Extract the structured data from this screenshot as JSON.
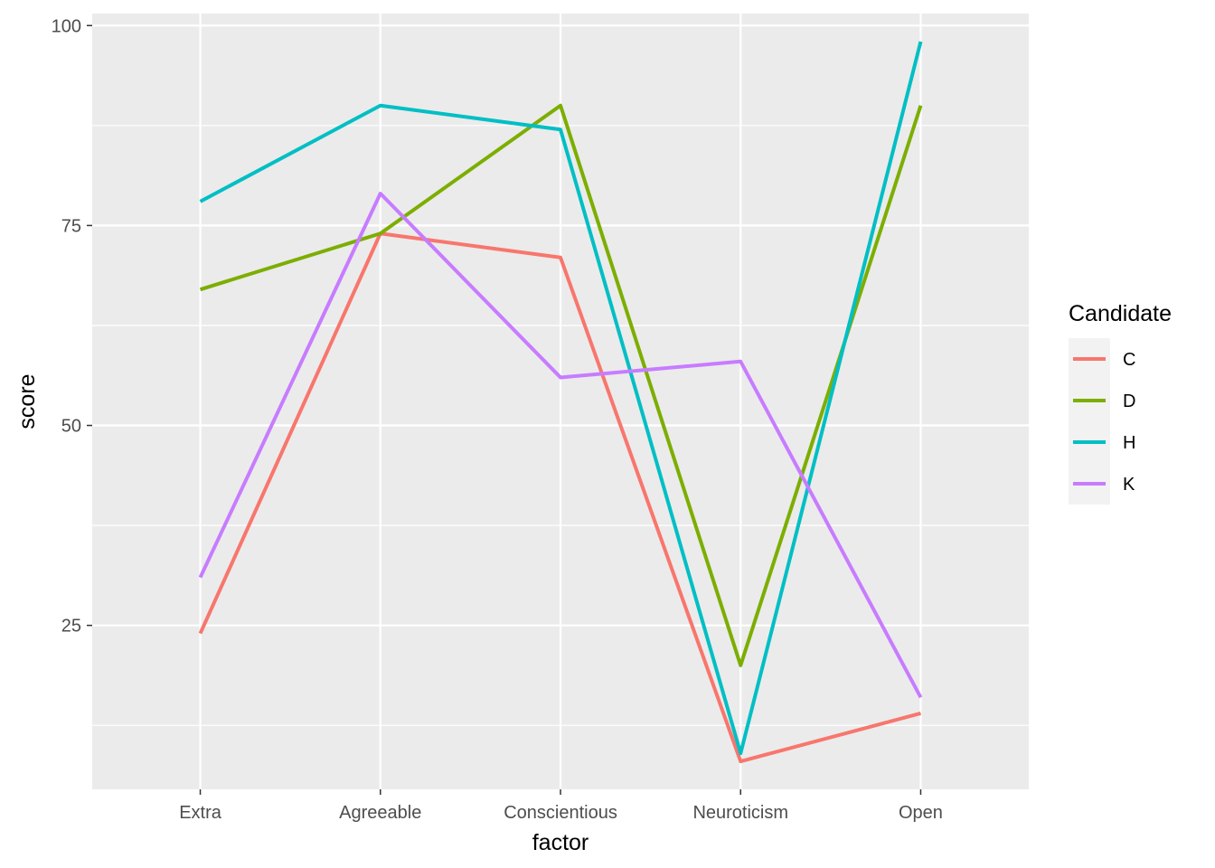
{
  "chart_data": {
    "type": "line",
    "categories": [
      "Extra",
      "Agreeable",
      "Conscientious",
      "Neuroticism",
      "Open"
    ],
    "series": [
      {
        "name": "C",
        "color": "#F8766D",
        "values": [
          24,
          74,
          71,
          8,
          14
        ]
      },
      {
        "name": "D",
        "color": "#7CAE00",
        "values": [
          67,
          74,
          90,
          20,
          90
        ]
      },
      {
        "name": "H",
        "color": "#00BFC4",
        "values": [
          78,
          90,
          87,
          9,
          98
        ]
      },
      {
        "name": "K",
        "color": "#C77CFF",
        "values": [
          31,
          79,
          56,
          58,
          16
        ]
      }
    ],
    "xlabel": "factor",
    "ylabel": "score",
    "legend_title": "Candidate",
    "legend_position": "right",
    "ylim": [
      4.5,
      101.5
    ],
    "yticks": [
      25,
      50,
      75,
      100
    ],
    "ytick_labels": [
      "25",
      "50",
      "75",
      "100"
    ],
    "grid": true,
    "panel_background": "#EBEBEB",
    "grid_color": "#FFFFFF"
  }
}
